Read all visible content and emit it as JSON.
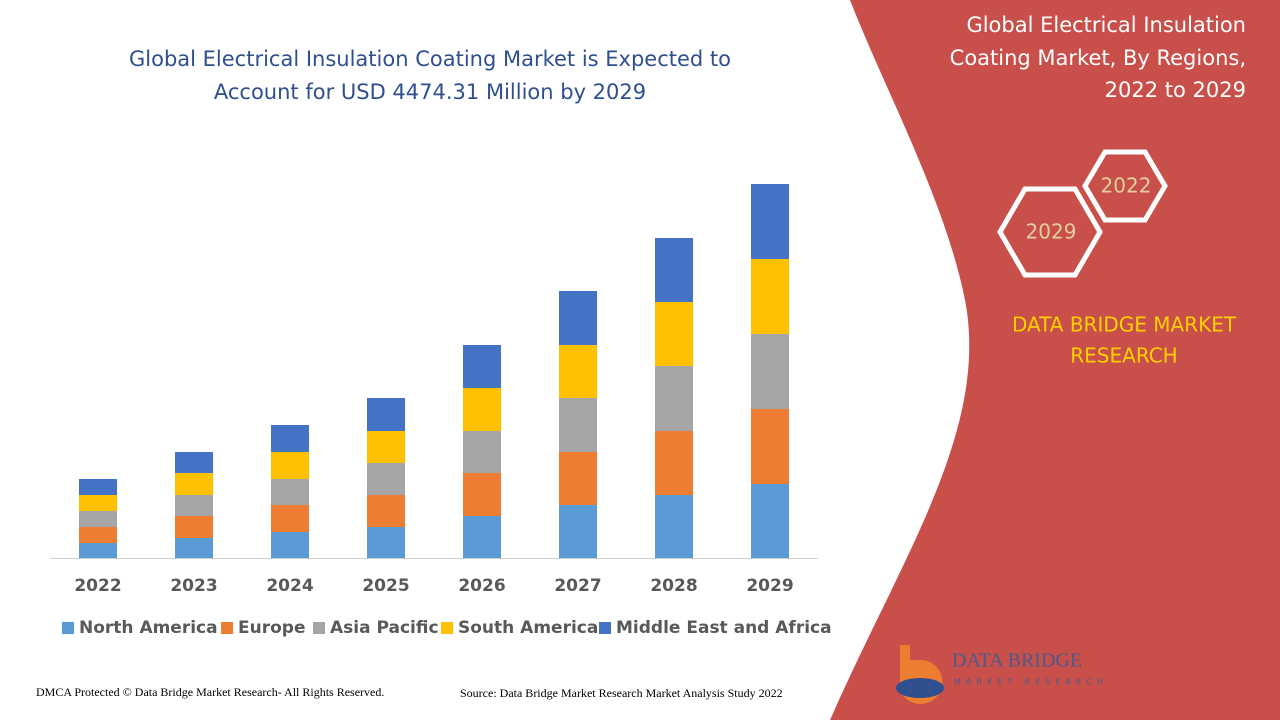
{
  "chart_data": {
    "type": "bar",
    "stacked": true,
    "title": [
      "Global Electrical Insulation Coating Market is Expected to",
      "Account for USD 4474.31 Million by 2029"
    ],
    "categories": [
      "2022",
      "2023",
      "2024",
      "2025",
      "2026",
      "2027",
      "2028",
      "2029"
    ],
    "series": [
      {
        "name": "North America",
        "color": "#5b9bd5",
        "values": [
          15,
          20,
          26,
          31,
          42,
          53,
          63,
          74
        ]
      },
      {
        "name": "Europe",
        "color": "#ed7d31",
        "values": [
          16,
          22,
          27,
          32,
          43,
          53,
          64,
          75
        ]
      },
      {
        "name": "Asia Pacific",
        "color": "#a5a5a5",
        "values": [
          16,
          21,
          26,
          32,
          42,
          54,
          65,
          75
        ]
      },
      {
        "name": "South America",
        "color": "#ffc000",
        "values": [
          16,
          22,
          27,
          32,
          43,
          53,
          64,
          75
        ]
      },
      {
        "name": "Middle East and Africa",
        "color": "#4472c4",
        "values": [
          16,
          21,
          27,
          33,
          43,
          54,
          64,
          75
        ]
      }
    ],
    "legend": "bottom"
  },
  "panel": {
    "title": [
      "Global Electrical Insulation",
      "Coating Market, By Regions,",
      "2022 to 2029"
    ],
    "hexagons": [
      "2022",
      "2029"
    ],
    "brand": [
      "DATA BRIDGE MARKET",
      "RESEARCH"
    ],
    "logo": {
      "name": "DATA BRIDGE",
      "tagline": "MARKET RESEARCH"
    }
  },
  "footer": {
    "copyright": "DMCA Protected © Data Bridge Market Research- All Rights Reserved.",
    "source": "Source: Data Bridge Market Research Market Analysis Study 2022"
  }
}
